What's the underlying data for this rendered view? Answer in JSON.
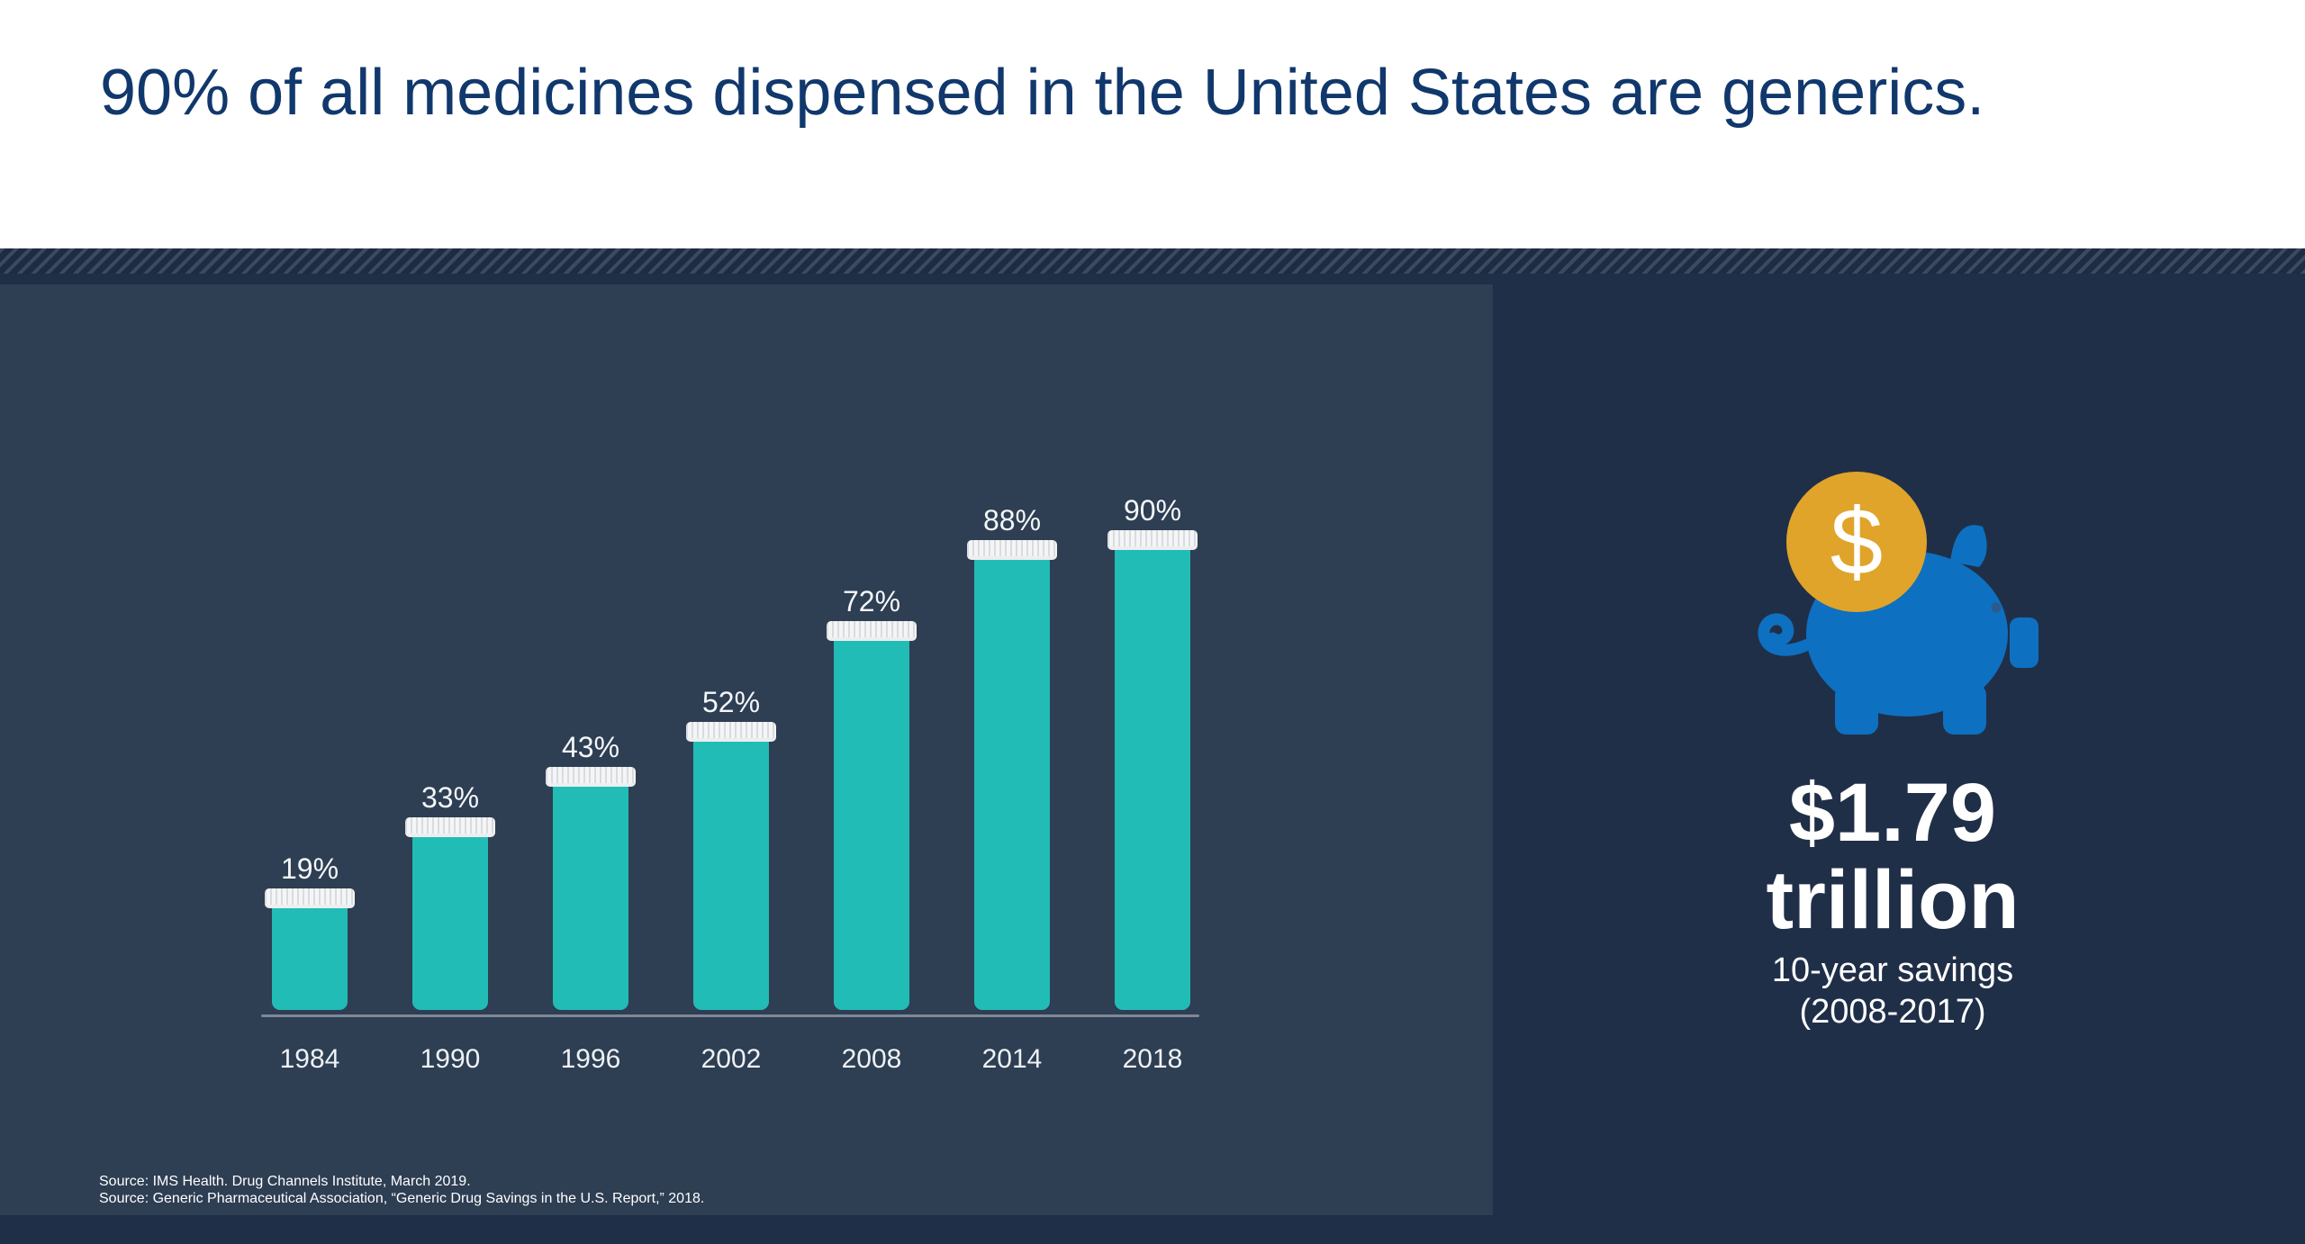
{
  "header": {
    "title": "90% of all medicines dispensed in the United States are generics."
  },
  "chart_data": {
    "type": "bar",
    "bar_style": "pill-bottle",
    "categories": [
      "1984",
      "1990",
      "1996",
      "2002",
      "2008",
      "2014",
      "2018"
    ],
    "values": [
      19,
      33,
      43,
      52,
      72,
      88,
      90
    ],
    "value_labels": [
      "19%",
      "33%",
      "43%",
      "52%",
      "72%",
      "88%",
      "90%"
    ],
    "unit": "%",
    "ylim": [
      0,
      100
    ],
    "grid": false,
    "legend": "none",
    "bar_color": "#21bcb5",
    "cap_color": "#f4f5f6",
    "axis_color": "#7e8897"
  },
  "sources": [
    "Source: IMS Health. Drug Channels Institute, March 2019.",
    "Source: Generic Pharmaceutical Association, “Generic Drug Savings in the U.S. Report,” 2018."
  ],
  "savings": {
    "amount_line1": "$1.79",
    "amount_line2": "trillion",
    "caption_line1": "10-year savings",
    "caption_line2": "(2008-2017)",
    "coin_symbol": "$"
  },
  "icons": {
    "piggy_bank": "piggy-bank-icon",
    "coin": "dollar-coin-icon"
  },
  "colors": {
    "header_background": "#ffffff",
    "title_text": "#11386c",
    "page_background": "#202f48",
    "chart_panel_background": "#2e3e53",
    "stripe_light": "#3b4a63",
    "stripe_dark": "#1e2b41",
    "bar_teal": "#21bcb5",
    "bottle_cap_white": "#f4f5f6",
    "axis_gray": "#7e8897",
    "text_white": "#ffffff",
    "coin_gold": "#e0a42b",
    "pig_blue": "#0e70c0",
    "pig_eye": "#2d5a8e"
  }
}
